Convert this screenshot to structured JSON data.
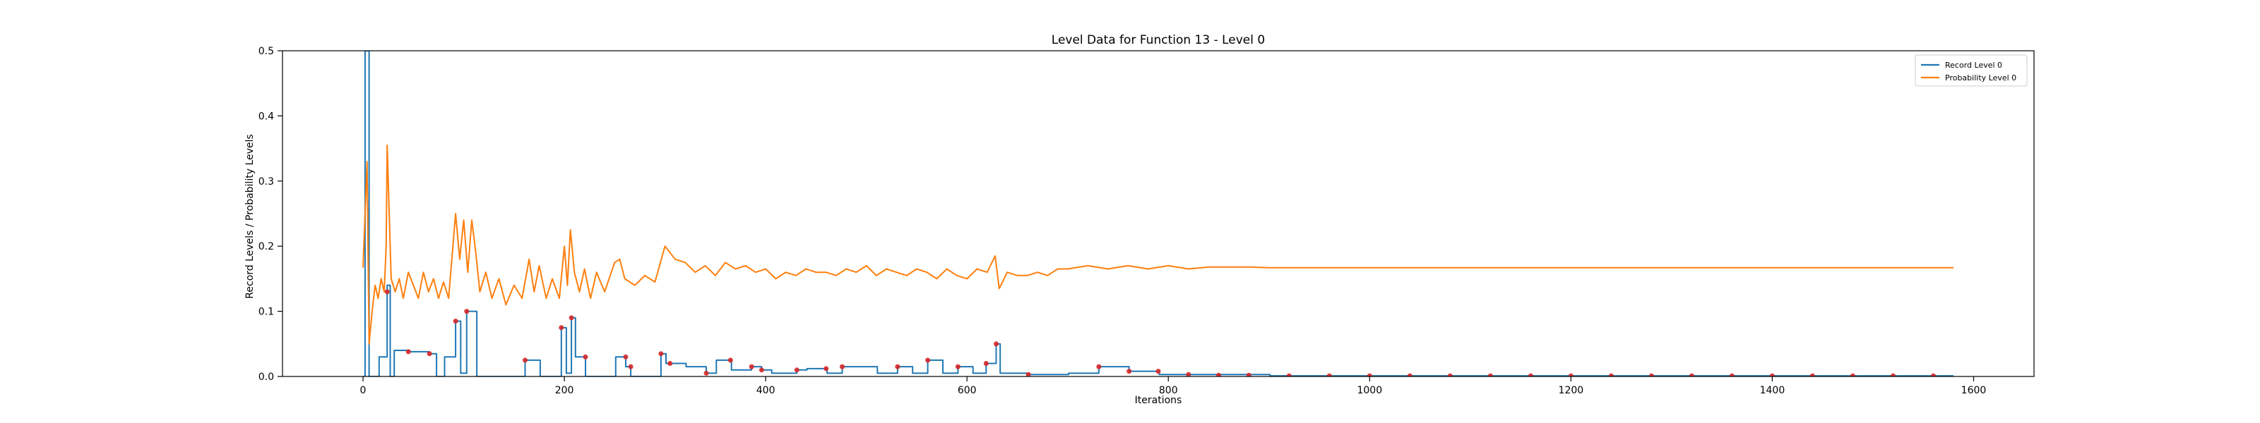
{
  "chart_data": {
    "type": "line",
    "title": "Level Data for Function 13 - Level 0",
    "xlabel": "Iterations",
    "ylabel": "Record Levels / Probability Levels",
    "xlim": [
      -80,
      1660
    ],
    "ylim": [
      0,
      0.5
    ],
    "xticks": [
      0,
      200,
      400,
      600,
      800,
      1000,
      1200,
      1400,
      1600
    ],
    "yticks": [
      0.0,
      0.1,
      0.2,
      0.3,
      0.4,
      0.5
    ],
    "xtick_labels": [
      "0",
      "200",
      "400",
      "600",
      "800",
      "1000",
      "1200",
      "1400",
      "1600"
    ],
    "ytick_labels": [
      "0.0",
      "0.1",
      "0.2",
      "0.3",
      "0.4",
      "0.5"
    ],
    "grid": false,
    "legend_position": "top-right",
    "series": [
      {
        "name": "Record Level 0",
        "color": "#1f77b4",
        "style": "step",
        "points": [
          [
            0,
            0
          ],
          [
            2,
            0.5
          ],
          [
            5,
            0.5
          ],
          [
            6,
            0
          ],
          [
            15,
            0
          ],
          [
            16,
            0.03
          ],
          [
            23,
            0.03
          ],
          [
            24,
            0.14
          ],
          [
            26,
            0.14
          ],
          [
            27,
            0
          ],
          [
            30,
            0
          ],
          [
            31,
            0.04
          ],
          [
            45,
            0.04
          ],
          [
            46,
            0.038
          ],
          [
            65,
            0.038
          ],
          [
            66,
            0.035
          ],
          [
            72,
            0.035
          ],
          [
            73,
            0
          ],
          [
            80,
            0
          ],
          [
            81,
            0.03
          ],
          [
            90,
            0.03
          ],
          [
            92,
            0.085
          ],
          [
            96,
            0.085
          ],
          [
            97,
            0.005
          ],
          [
            102,
            0.005
          ],
          [
            103,
            0.1
          ],
          [
            112,
            0.1
          ],
          [
            113,
            0
          ],
          [
            160,
            0
          ],
          [
            161,
            0.025
          ],
          [
            175,
            0.025
          ],
          [
            176,
            0
          ],
          [
            195,
            0
          ],
          [
            197,
            0.075
          ],
          [
            201,
            0.075
          ],
          [
            202,
            0.005
          ],
          [
            206,
            0.005
          ],
          [
            207,
            0.09
          ],
          [
            210,
            0.09
          ],
          [
            211,
            0.03
          ],
          [
            220,
            0.03
          ],
          [
            221,
            0
          ],
          [
            250,
            0
          ],
          [
            251,
            0.03
          ],
          [
            260,
            0.03
          ],
          [
            261,
            0.015
          ],
          [
            265,
            0.015
          ],
          [
            266,
            0
          ],
          [
            295,
            0
          ],
          [
            296,
            0.035
          ],
          [
            300,
            0.035
          ],
          [
            301,
            0.02
          ],
          [
            320,
            0.02
          ],
          [
            321,
            0.015
          ],
          [
            340,
            0.015
          ],
          [
            341,
            0.005
          ],
          [
            350,
            0.005
          ],
          [
            351,
            0.025
          ],
          [
            365,
            0.025
          ],
          [
            366,
            0.01
          ],
          [
            385,
            0.01
          ],
          [
            386,
            0.015
          ],
          [
            395,
            0.015
          ],
          [
            396,
            0.01
          ],
          [
            405,
            0.01
          ],
          [
            406,
            0.005
          ],
          [
            430,
            0.005
          ],
          [
            431,
            0.01
          ],
          [
            440,
            0.01
          ],
          [
            441,
            0.012
          ],
          [
            460,
            0.012
          ],
          [
            461,
            0.005
          ],
          [
            475,
            0.005
          ],
          [
            476,
            0.015
          ],
          [
            510,
            0.015
          ],
          [
            511,
            0.005
          ],
          [
            530,
            0.005
          ],
          [
            531,
            0.015
          ],
          [
            545,
            0.015
          ],
          [
            546,
            0.005
          ],
          [
            560,
            0.005
          ],
          [
            561,
            0.025
          ],
          [
            575,
            0.025
          ],
          [
            576,
            0.005
          ],
          [
            590,
            0.005
          ],
          [
            591,
            0.015
          ],
          [
            605,
            0.015
          ],
          [
            606,
            0.005
          ],
          [
            618,
            0.005
          ],
          [
            619,
            0.02
          ],
          [
            628,
            0.02
          ],
          [
            629,
            0.05
          ],
          [
            632,
            0.05
          ],
          [
            633,
            0.005
          ],
          [
            660,
            0.005
          ],
          [
            661,
            0.003
          ],
          [
            700,
            0.003
          ],
          [
            701,
            0.005
          ],
          [
            730,
            0.005
          ],
          [
            731,
            0.015
          ],
          [
            760,
            0.015
          ],
          [
            761,
            0.008
          ],
          [
            790,
            0.008
          ],
          [
            791,
            0.003
          ],
          [
            900,
            0.003
          ],
          [
            901,
            0.001
          ],
          [
            1580,
            0.001
          ]
        ]
      },
      {
        "name": "Probability Level 0",
        "color": "#ff7f0e",
        "style": "line",
        "points": [
          [
            0,
            0.167
          ],
          [
            2,
            0.25
          ],
          [
            4,
            0.33
          ],
          [
            6,
            0.05
          ],
          [
            9,
            0.1
          ],
          [
            12,
            0.14
          ],
          [
            15,
            0.12
          ],
          [
            18,
            0.15
          ],
          [
            21,
            0.13
          ],
          [
            23,
            0.2
          ],
          [
            24,
            0.355
          ],
          [
            26,
            0.25
          ],
          [
            28,
            0.15
          ],
          [
            32,
            0.13
          ],
          [
            36,
            0.15
          ],
          [
            40,
            0.12
          ],
          [
            45,
            0.16
          ],
          [
            50,
            0.14
          ],
          [
            55,
            0.12
          ],
          [
            60,
            0.16
          ],
          [
            65,
            0.13
          ],
          [
            70,
            0.15
          ],
          [
            75,
            0.12
          ],
          [
            80,
            0.145
          ],
          [
            85,
            0.12
          ],
          [
            92,
            0.25
          ],
          [
            96,
            0.18
          ],
          [
            100,
            0.24
          ],
          [
            104,
            0.16
          ],
          [
            108,
            0.24
          ],
          [
            112,
            0.19
          ],
          [
            116,
            0.13
          ],
          [
            122,
            0.16
          ],
          [
            128,
            0.12
          ],
          [
            135,
            0.15
          ],
          [
            142,
            0.11
          ],
          [
            150,
            0.14
          ],
          [
            158,
            0.12
          ],
          [
            165,
            0.18
          ],
          [
            170,
            0.13
          ],
          [
            175,
            0.17
          ],
          [
            182,
            0.12
          ],
          [
            188,
            0.15
          ],
          [
            195,
            0.12
          ],
          [
            200,
            0.2
          ],
          [
            203,
            0.14
          ],
          [
            206,
            0.225
          ],
          [
            210,
            0.16
          ],
          [
            215,
            0.13
          ],
          [
            220,
            0.165
          ],
          [
            226,
            0.12
          ],
          [
            232,
            0.16
          ],
          [
            240,
            0.13
          ],
          [
            250,
            0.175
          ],
          [
            255,
            0.18
          ],
          [
            260,
            0.15
          ],
          [
            270,
            0.14
          ],
          [
            280,
            0.155
          ],
          [
            290,
            0.145
          ],
          [
            300,
            0.2
          ],
          [
            310,
            0.18
          ],
          [
            320,
            0.175
          ],
          [
            330,
            0.16
          ],
          [
            340,
            0.17
          ],
          [
            350,
            0.155
          ],
          [
            360,
            0.175
          ],
          [
            370,
            0.165
          ],
          [
            380,
            0.17
          ],
          [
            390,
            0.16
          ],
          [
            400,
            0.165
          ],
          [
            410,
            0.15
          ],
          [
            420,
            0.16
          ],
          [
            430,
            0.155
          ],
          [
            440,
            0.165
          ],
          [
            450,
            0.16
          ],
          [
            460,
            0.16
          ],
          [
            470,
            0.155
          ],
          [
            480,
            0.165
          ],
          [
            490,
            0.16
          ],
          [
            500,
            0.17
          ],
          [
            510,
            0.155
          ],
          [
            520,
            0.165
          ],
          [
            530,
            0.16
          ],
          [
            540,
            0.155
          ],
          [
            550,
            0.165
          ],
          [
            560,
            0.16
          ],
          [
            570,
            0.15
          ],
          [
            580,
            0.165
          ],
          [
            590,
            0.155
          ],
          [
            600,
            0.15
          ],
          [
            610,
            0.165
          ],
          [
            620,
            0.16
          ],
          [
            628,
            0.185
          ],
          [
            632,
            0.135
          ],
          [
            640,
            0.16
          ],
          [
            650,
            0.155
          ],
          [
            660,
            0.155
          ],
          [
            670,
            0.16
          ],
          [
            680,
            0.155
          ],
          [
            690,
            0.165
          ],
          [
            700,
            0.165
          ],
          [
            720,
            0.17
          ],
          [
            740,
            0.165
          ],
          [
            760,
            0.17
          ],
          [
            780,
            0.165
          ],
          [
            800,
            0.17
          ],
          [
            820,
            0.165
          ],
          [
            840,
            0.168
          ],
          [
            860,
            0.168
          ],
          [
            880,
            0.168
          ],
          [
            900,
            0.167
          ],
          [
            950,
            0.167
          ],
          [
            1000,
            0.167
          ],
          [
            1100,
            0.167
          ],
          [
            1200,
            0.167
          ],
          [
            1300,
            0.167
          ],
          [
            1400,
            0.167
          ],
          [
            1500,
            0.167
          ],
          [
            1580,
            0.167
          ]
        ]
      }
    ],
    "markers": {
      "color": "#d62728",
      "points": [
        [
          24,
          0.13
        ],
        [
          45,
          0.038
        ],
        [
          66,
          0.035
        ],
        [
          92,
          0.085
        ],
        [
          103,
          0.1
        ],
        [
          161,
          0.025
        ],
        [
          197,
          0.075
        ],
        [
          207,
          0.09
        ],
        [
          221,
          0.03
        ],
        [
          261,
          0.03
        ],
        [
          266,
          0.015
        ],
        [
          296,
          0.035
        ],
        [
          305,
          0.02
        ],
        [
          341,
          0.005
        ],
        [
          365,
          0.025
        ],
        [
          386,
          0.015
        ],
        [
          396,
          0.01
        ],
        [
          431,
          0.01
        ],
        [
          460,
          0.012
        ],
        [
          476,
          0.015
        ],
        [
          531,
          0.015
        ],
        [
          561,
          0.025
        ],
        [
          591,
          0.015
        ],
        [
          619,
          0.02
        ],
        [
          629,
          0.05
        ],
        [
          661,
          0.003
        ],
        [
          731,
          0.015
        ],
        [
          761,
          0.008
        ],
        [
          790,
          0.008
        ],
        [
          820,
          0.003
        ],
        [
          850,
          0.002
        ],
        [
          880,
          0.002
        ],
        [
          920,
          0.001
        ],
        [
          960,
          0.001
        ],
        [
          1000,
          0.001
        ],
        [
          1040,
          0.001
        ],
        [
          1080,
          0.001
        ],
        [
          1120,
          0.001
        ],
        [
          1160,
          0.001
        ],
        [
          1200,
          0.001
        ],
        [
          1240,
          0.001
        ],
        [
          1280,
          0.001
        ],
        [
          1320,
          0.001
        ],
        [
          1360,
          0.001
        ],
        [
          1400,
          0.001
        ],
        [
          1440,
          0.001
        ],
        [
          1480,
          0.001
        ],
        [
          1520,
          0.001
        ],
        [
          1560,
          0.001
        ]
      ]
    }
  }
}
